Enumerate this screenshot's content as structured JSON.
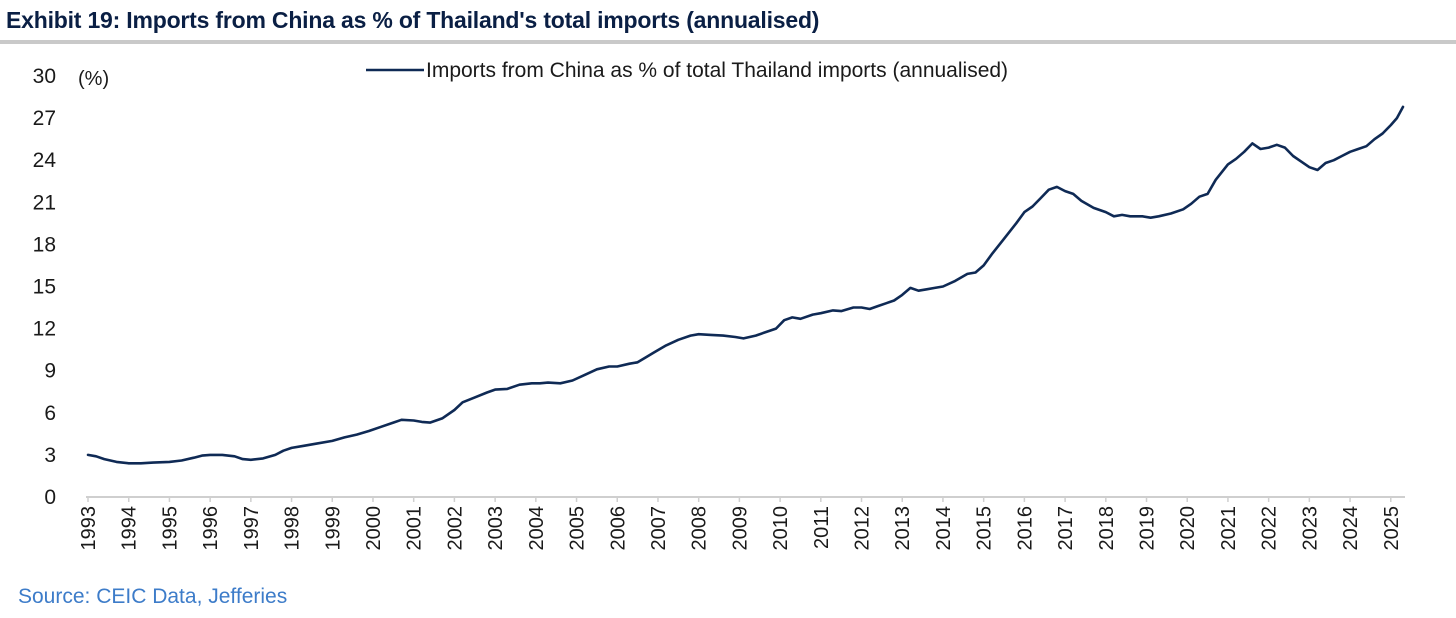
{
  "title": "Exhibit 19: Imports from China as % of Thailand's total imports (annualised)",
  "source": "Source: CEIC Data, Jefferies",
  "colors": {
    "line": "#0f2a55",
    "axis": "#cfcfcf",
    "title": "#0a1f44",
    "source": "#3d7cc9"
  },
  "chart_data": {
    "type": "line",
    "title": "Exhibit 19: Imports from China as % of Thailand's total imports (annualised)",
    "ylabel": "(%)",
    "xlabel": "",
    "ylim": [
      0,
      30
    ],
    "yticks": [
      0,
      3,
      6,
      9,
      12,
      15,
      18,
      21,
      24,
      27,
      30
    ],
    "xlim": [
      1993,
      2025.3
    ],
    "xticks": [
      1993,
      1994,
      1995,
      1996,
      1997,
      1998,
      1999,
      2000,
      2001,
      2002,
      2003,
      2004,
      2005,
      2006,
      2007,
      2008,
      2009,
      2010,
      2011,
      2012,
      2013,
      2014,
      2015,
      2016,
      2017,
      2018,
      2019,
      2020,
      2021,
      2022,
      2023,
      2024,
      2025
    ],
    "legend_position": "top-center",
    "series": [
      {
        "name": "Imports from China as % of total Thailand imports (annualised)",
        "points": [
          [
            1993.0,
            3.0
          ],
          [
            1993.2,
            2.9
          ],
          [
            1993.4,
            2.7
          ],
          [
            1993.7,
            2.5
          ],
          [
            1994.0,
            2.4
          ],
          [
            1994.3,
            2.4
          ],
          [
            1994.6,
            2.45
          ],
          [
            1995.0,
            2.5
          ],
          [
            1995.3,
            2.6
          ],
          [
            1995.6,
            2.8
          ],
          [
            1995.8,
            2.95
          ],
          [
            1996.0,
            3.0
          ],
          [
            1996.3,
            3.0
          ],
          [
            1996.6,
            2.9
          ],
          [
            1996.8,
            2.7
          ],
          [
            1997.0,
            2.65
          ],
          [
            1997.3,
            2.75
          ],
          [
            1997.6,
            3.0
          ],
          [
            1997.8,
            3.3
          ],
          [
            1998.0,
            3.5
          ],
          [
            1998.3,
            3.65
          ],
          [
            1998.6,
            3.8
          ],
          [
            1999.0,
            4.0
          ],
          [
            1999.3,
            4.25
          ],
          [
            1999.6,
            4.45
          ],
          [
            1999.9,
            4.7
          ],
          [
            2000.2,
            5.0
          ],
          [
            2000.5,
            5.3
          ],
          [
            2000.7,
            5.5
          ],
          [
            2001.0,
            5.45
          ],
          [
            2001.2,
            5.35
          ],
          [
            2001.4,
            5.3
          ],
          [
            2001.7,
            5.6
          ],
          [
            2002.0,
            6.2
          ],
          [
            2002.2,
            6.75
          ],
          [
            2002.5,
            7.1
          ],
          [
            2002.8,
            7.45
          ],
          [
            2003.0,
            7.65
          ],
          [
            2003.3,
            7.7
          ],
          [
            2003.6,
            8.0
          ],
          [
            2003.9,
            8.1
          ],
          [
            2004.1,
            8.1
          ],
          [
            2004.3,
            8.15
          ],
          [
            2004.6,
            8.1
          ],
          [
            2004.9,
            8.3
          ],
          [
            2005.2,
            8.7
          ],
          [
            2005.5,
            9.1
          ],
          [
            2005.8,
            9.3
          ],
          [
            2006.0,
            9.3
          ],
          [
            2006.3,
            9.5
          ],
          [
            2006.5,
            9.6
          ],
          [
            2006.7,
            9.95
          ],
          [
            2006.9,
            10.3
          ],
          [
            2007.2,
            10.8
          ],
          [
            2007.5,
            11.2
          ],
          [
            2007.8,
            11.5
          ],
          [
            2008.0,
            11.6
          ],
          [
            2008.3,
            11.55
          ],
          [
            2008.6,
            11.5
          ],
          [
            2008.9,
            11.4
          ],
          [
            2009.1,
            11.3
          ],
          [
            2009.4,
            11.5
          ],
          [
            2009.7,
            11.8
          ],
          [
            2009.9,
            12.0
          ],
          [
            2010.1,
            12.6
          ],
          [
            2010.3,
            12.8
          ],
          [
            2010.5,
            12.7
          ],
          [
            2010.8,
            13.0
          ],
          [
            2011.0,
            13.1
          ],
          [
            2011.3,
            13.3
          ],
          [
            2011.5,
            13.25
          ],
          [
            2011.8,
            13.5
          ],
          [
            2012.0,
            13.5
          ],
          [
            2012.2,
            13.4
          ],
          [
            2012.4,
            13.6
          ],
          [
            2012.6,
            13.8
          ],
          [
            2012.8,
            14.0
          ],
          [
            2013.0,
            14.4
          ],
          [
            2013.2,
            14.9
          ],
          [
            2013.4,
            14.7
          ],
          [
            2013.6,
            14.8
          ],
          [
            2013.8,
            14.9
          ],
          [
            2014.0,
            15.0
          ],
          [
            2014.3,
            15.4
          ],
          [
            2014.6,
            15.9
          ],
          [
            2014.8,
            16.0
          ],
          [
            2015.0,
            16.5
          ],
          [
            2015.2,
            17.3
          ],
          [
            2015.5,
            18.4
          ],
          [
            2015.8,
            19.5
          ],
          [
            2016.0,
            20.3
          ],
          [
            2016.2,
            20.7
          ],
          [
            2016.4,
            21.3
          ],
          [
            2016.6,
            21.9
          ],
          [
            2016.8,
            22.1
          ],
          [
            2017.0,
            21.8
          ],
          [
            2017.2,
            21.6
          ],
          [
            2017.4,
            21.1
          ],
          [
            2017.7,
            20.6
          ],
          [
            2018.0,
            20.3
          ],
          [
            2018.2,
            20.0
          ],
          [
            2018.4,
            20.1
          ],
          [
            2018.6,
            20.0
          ],
          [
            2018.9,
            20.0
          ],
          [
            2019.1,
            19.9
          ],
          [
            2019.3,
            20.0
          ],
          [
            2019.6,
            20.2
          ],
          [
            2019.9,
            20.5
          ],
          [
            2020.1,
            20.9
          ],
          [
            2020.3,
            21.4
          ],
          [
            2020.5,
            21.6
          ],
          [
            2020.7,
            22.6
          ],
          [
            2021.0,
            23.7
          ],
          [
            2021.2,
            24.1
          ],
          [
            2021.4,
            24.6
          ],
          [
            2021.6,
            25.2
          ],
          [
            2021.8,
            24.8
          ],
          [
            2022.0,
            24.9
          ],
          [
            2022.2,
            25.1
          ],
          [
            2022.4,
            24.9
          ],
          [
            2022.6,
            24.3
          ],
          [
            2022.8,
            23.9
          ],
          [
            2023.0,
            23.5
          ],
          [
            2023.2,
            23.3
          ],
          [
            2023.4,
            23.8
          ],
          [
            2023.6,
            24.0
          ],
          [
            2023.8,
            24.3
          ],
          [
            2024.0,
            24.6
          ],
          [
            2024.2,
            24.8
          ],
          [
            2024.4,
            25.0
          ],
          [
            2024.6,
            25.5
          ],
          [
            2024.8,
            25.9
          ],
          [
            2025.0,
            26.5
          ],
          [
            2025.15,
            27.0
          ],
          [
            2025.3,
            27.8
          ]
        ]
      }
    ]
  }
}
